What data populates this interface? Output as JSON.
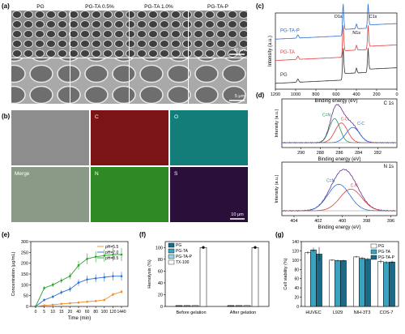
{
  "panels": {
    "a": {
      "label": "(a)",
      "headers": [
        "PG",
        "PG-TA 0.5%",
        "PG-TA 1.0%",
        "PG-TA-P"
      ],
      "scale_top": "40 μm",
      "scale_bottom": "5 μm"
    },
    "b": {
      "label": "(b)",
      "channels": [
        "",
        "C",
        "O",
        "Merge",
        "N",
        "S"
      ],
      "scale": "10 μm"
    }
  },
  "chart_data": [
    {
      "panel": "c",
      "label": "(c)",
      "type": "line",
      "xlabel": "Binding energy (eV)",
      "ylabel": "Intensity (a.u.)",
      "xlim": [
        1200,
        0
      ],
      "x_ticks": [
        1200,
        1000,
        800,
        600,
        400,
        200,
        0
      ],
      "series": [
        {
          "name": "PG-TA-P",
          "color": "#2b6fd6",
          "baseline": 0.78
        },
        {
          "name": "PG-TA",
          "color": "#e03c3c",
          "baseline": 0.5
        },
        {
          "name": "PG",
          "color": "#333333",
          "baseline": 0.2
        }
      ],
      "annotations": [
        "O1s",
        "N1s",
        "C1s"
      ]
    },
    {
      "panel": "d",
      "label": "(d)",
      "type": "line",
      "title": "C 1s",
      "xlabel": "Binding energy (eV)",
      "ylabel": "Intensity (a.u.)",
      "xlim": [
        292,
        280
      ],
      "x_ticks": [
        290,
        288,
        286,
        284,
        282
      ],
      "peaks": [
        {
          "label": "C=N",
          "center": 286.5,
          "color": "#2e8b57"
        },
        {
          "label": "C-O",
          "center": 285.8,
          "color": "#e03c3c"
        },
        {
          "label": "C-C",
          "center": 284.6,
          "color": "#2b6fd6"
        }
      ]
    },
    {
      "panel": "d",
      "type": "line",
      "title": "N 1s",
      "xlabel": "Binding energy (eV)",
      "ylabel": "Intensity (a.u.)",
      "xlim": [
        405,
        395.5
      ],
      "x_ticks": [
        404,
        402,
        400,
        398,
        396
      ],
      "peaks": [
        {
          "label": "C=N",
          "center": 400.3,
          "color": "#2b6fd6"
        },
        {
          "label": "C-N",
          "center": 399.3,
          "color": "#e03c3c"
        }
      ]
    },
    {
      "panel": "e",
      "label": "(e)",
      "type": "line",
      "xlabel": "Time (min)",
      "ylabel": "Concentration (μg/mL)",
      "ylim": [
        0,
        300
      ],
      "y_ticks": [
        0,
        50,
        100,
        150,
        200,
        250,
        300
      ],
      "x_ticks": [
        "0",
        "5",
        "10",
        "15",
        "20",
        "40",
        "60",
        "80",
        "100",
        "120",
        "1440"
      ],
      "series": [
        {
          "name": "pH=5.5",
          "color": "#f28c28",
          "values": [
            0,
            5,
            8,
            12,
            15,
            18,
            22,
            25,
            30,
            55,
            68
          ],
          "errors": [
            1,
            2,
            2,
            3,
            3,
            4,
            4,
            5,
            6,
            8,
            8
          ]
        },
        {
          "name": "pH=7.0",
          "color": "#2b6fd6",
          "values": [
            0,
            30,
            45,
            65,
            80,
            110,
            125,
            130,
            135,
            140,
            140
          ],
          "errors": [
            2,
            6,
            8,
            10,
            12,
            15,
            18,
            18,
            20,
            20,
            20
          ]
        },
        {
          "name": "pH=8.5",
          "color": "#2ca02c",
          "values": [
            0,
            85,
            100,
            120,
            140,
            190,
            220,
            230,
            235,
            240,
            240
          ],
          "errors": [
            3,
            8,
            10,
            12,
            15,
            20,
            25,
            25,
            28,
            30,
            30
          ]
        }
      ]
    },
    {
      "panel": "f",
      "label": "(f)",
      "type": "bar",
      "ylabel": "Hemolysis (%)",
      "ylim": [
        0,
        110
      ],
      "y_ticks": [
        0,
        20,
        40,
        60,
        80,
        100
      ],
      "categories": [
        "Before gelation",
        "After gelation"
      ],
      "series": [
        {
          "name": "PG",
          "color": "#1b6a87",
          "values": [
            1.5,
            1.5
          ],
          "errors": [
            0.5,
            0.5
          ]
        },
        {
          "name": "PG-TA",
          "color": "#3aa3bf",
          "values": [
            1.5,
            1.5
          ],
          "errors": [
            0.5,
            0.5
          ]
        },
        {
          "name": "PG-TA-P",
          "color": "#9fd4dc",
          "values": [
            1.5,
            1.5
          ],
          "errors": [
            0.5,
            0.5
          ]
        },
        {
          "name": "TX-100",
          "color": "#ffffff",
          "values": [
            100,
            100
          ],
          "errors": [
            2,
            2
          ]
        }
      ]
    },
    {
      "panel": "g",
      "label": "(g)",
      "type": "bar",
      "ylabel": "Cell viability (%)",
      "ylim": [
        0,
        140
      ],
      "y_ticks": [
        0,
        20,
        40,
        60,
        80,
        100,
        120,
        140
      ],
      "categories": [
        "HUVEC",
        "L929",
        "NIH-3T3",
        "COS-7"
      ],
      "series": [
        {
          "name": "PG",
          "color": "#ffffff",
          "values": [
            116,
            100,
            107,
            97
          ],
          "errors": [
            3,
            2,
            2,
            4
          ]
        },
        {
          "name": "PG-TA",
          "color": "#3aa3bf",
          "values": [
            122,
            99,
            104,
            95
          ],
          "errors": [
            5,
            2,
            3,
            3
          ]
        },
        {
          "name": "PG-TA-P",
          "color": "#1b6a87",
          "values": [
            113,
            99,
            102,
            96
          ],
          "errors": [
            15,
            2,
            3,
            3
          ]
        }
      ]
    }
  ]
}
